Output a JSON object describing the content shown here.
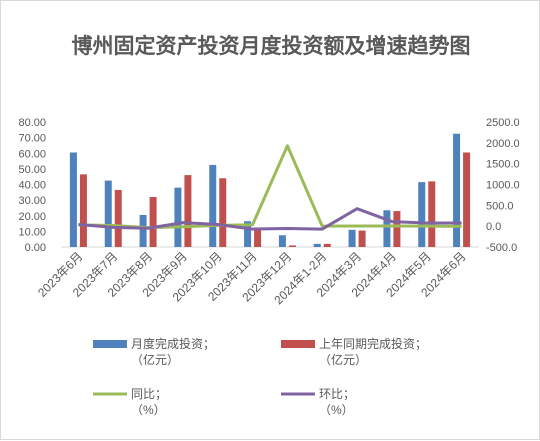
{
  "chart_data": {
    "type": "bar",
    "title": "博州固定资产投资月度投资额及增速趋势图",
    "categories": [
      "2023年6月",
      "2023年7月",
      "2023年8月",
      "2023年9月",
      "2023年10月",
      "2023年11月",
      "2023年12月",
      "2024年1-2月",
      "2024年3月",
      "2024年4月",
      "2024年5月",
      "2024年6月"
    ],
    "y_left": {
      "ticks": [
        "0.00",
        "10.00",
        "20.00",
        "30.00",
        "40.00",
        "50.00",
        "60.00",
        "70.00",
        "80.00"
      ],
      "ylim": [
        0,
        80
      ]
    },
    "y_right": {
      "ticks": [
        "-500.0",
        "0.0",
        "500.0",
        "1000.0",
        "1500.0",
        "2000.0",
        "2500.0"
      ],
      "ylim": [
        -500,
        2500
      ]
    },
    "series": [
      {
        "name": "月度完成投资；（亿元）",
        "legend_lines": [
          "月度完成投资；",
          "（亿元）"
        ],
        "type": "bar",
        "axis": "left",
        "color": "#4f81bd",
        "values": [
          60.5,
          42.5,
          20.5,
          38.0,
          52.5,
          16.5,
          7.5,
          2.0,
          11.0,
          23.5,
          41.5,
          72.5
        ]
      },
      {
        "name": "上年同期完成投资；（亿元）",
        "legend_lines": [
          "上年同期完成投资；",
          "（亿元）"
        ],
        "type": "bar",
        "axis": "left",
        "color": "#c0504d",
        "values": [
          46.5,
          36.5,
          32.0,
          46.0,
          44.0,
          12.5,
          1.0,
          2.0,
          10.5,
          23.0,
          42.0,
          60.5
        ]
      },
      {
        "name": "同比；（%）",
        "legend_lines": [
          "同比；",
          "（%）"
        ],
        "type": "line",
        "axis": "right",
        "color": "#9bbb59",
        "values": [
          30,
          15,
          -35,
          -15,
          20,
          35,
          1930,
          0,
          5,
          5,
          0,
          -5
        ]
      },
      {
        "name": "环比；（%）",
        "legend_lines": [
          "环比；",
          "（%）"
        ],
        "type": "line",
        "axis": "right",
        "color": "#8064a2",
        "values": [
          40,
          -30,
          -50,
          85,
          40,
          -70,
          -55,
          -70,
          420,
          110,
          75,
          75
        ]
      }
    ],
    "grid": false,
    "legend_position": "bottom"
  }
}
